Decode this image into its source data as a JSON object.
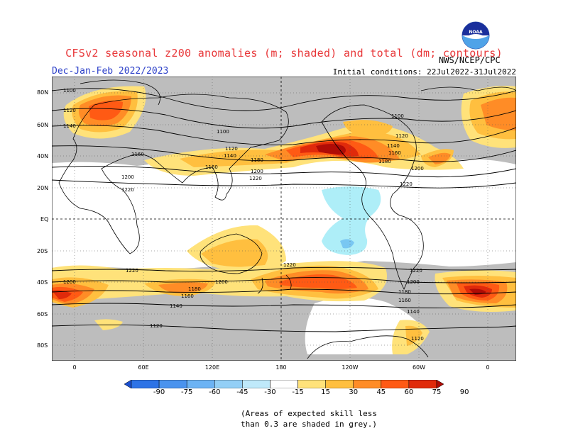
{
  "header": {
    "title": "CFSv2 seasonal z200 anomalies (m; shaded) and total (dm; contours)",
    "season": "Dec-Jan-Feb 2022/2023",
    "agency": "NWS/NCEP/CPC",
    "initial_conditions": "Initial conditions: 22Jul2022-31Jul2022",
    "logo_text": "NOAA"
  },
  "map": {
    "lat_labels": [
      "80N",
      "60N",
      "40N",
      "20N",
      "EQ",
      "20S",
      "40S",
      "60S",
      "80S"
    ],
    "lon_labels": [
      "0",
      "60E",
      "120E",
      "180",
      "120W",
      "60W",
      "0"
    ],
    "contour_labels": [
      "1100",
      "1120",
      "1140",
      "1160",
      "1180",
      "1200",
      "1220"
    ],
    "colors": {
      "grey_mask": "#bdbdbd",
      "pos_15": "#ffe27a",
      "pos_30": "#ffbf3f",
      "pos_45": "#ff8c26",
      "pos_60": "#ff5a14",
      "pos_75": "#e02a0b",
      "pos_90": "#b00c06",
      "neg_15": "#aeeef8",
      "neg_30": "#79c7f2"
    }
  },
  "colorbar": {
    "ticks": [
      "-90",
      "-75",
      "-60",
      "-45",
      "-30",
      "-15",
      "15",
      "30",
      "45",
      "60",
      "75",
      "90"
    ],
    "colors": [
      "#1a4fcf",
      "#2d73e6",
      "#4a93ee",
      "#6cb3f4",
      "#93cff6",
      "#bfe9fa",
      "#ffffff",
      "#ffe27a",
      "#ffbf3f",
      "#ff8c26",
      "#ff5a14",
      "#e02a0b",
      "#b00c06"
    ]
  },
  "footnote": {
    "line1": "(Areas of expected skill less",
    "line2": "than 0.3 are shaded in grey.)"
  }
}
